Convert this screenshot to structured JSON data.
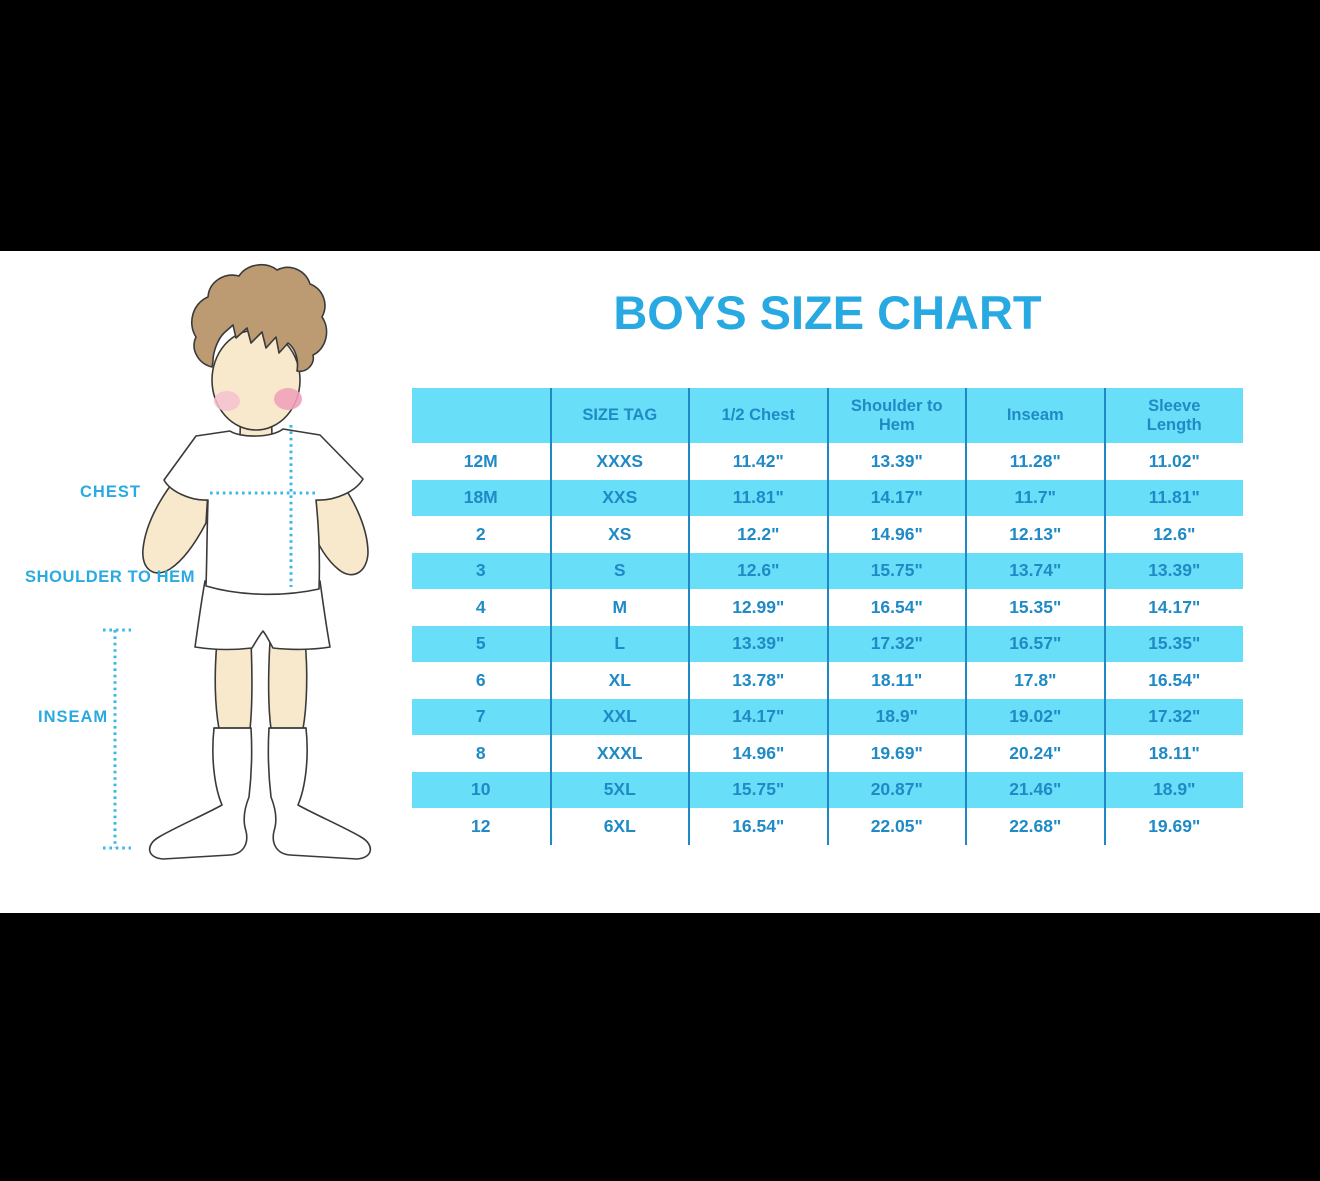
{
  "title": "BOYS SIZE CHART",
  "figure": {
    "labels": {
      "chest": "CHEST",
      "shoulder_to_hem": "SHOULDER TO HEM",
      "inseam": "INSEAM"
    }
  },
  "colors": {
    "accent_blue": "#29a9e1",
    "table_text_blue": "#1f8ac6",
    "cyan_band": "#69def8",
    "column_line_blue": "#2089c5",
    "dotted_line_blue": "#3cb8e8",
    "letterbox_black": "#000000",
    "skin": "#f9e9cc",
    "hair_brown": "#bc9b73",
    "cheek_pink": "#f2aabe"
  },
  "chart_data": {
    "type": "table",
    "title": "BOYS SIZE CHART",
    "columns": [
      "",
      "SIZE TAG",
      "1/2 Chest",
      "Shoulder to Hem",
      "Inseam",
      "Sleeve Length"
    ],
    "rows": [
      [
        "12M",
        "XXXS",
        "11.42\"",
        "13.39\"",
        "11.28\"",
        "11.02\""
      ],
      [
        "18M",
        "XXS",
        "11.81\"",
        "14.17\"",
        "11.7\"",
        "11.81\""
      ],
      [
        "2",
        "XS",
        "12.2\"",
        "14.96\"",
        "12.13\"",
        "12.6\""
      ],
      [
        "3",
        "S",
        "12.6\"",
        "15.75\"",
        "13.74\"",
        "13.39\""
      ],
      [
        "4",
        "M",
        "12.99\"",
        "16.54\"",
        "15.35\"",
        "14.17\""
      ],
      [
        "5",
        "L",
        "13.39\"",
        "17.32\"",
        "16.57\"",
        "15.35\""
      ],
      [
        "6",
        "XL",
        "13.78\"",
        "18.11\"",
        "17.8\"",
        "16.54\""
      ],
      [
        "7",
        "XXL",
        "14.17\"",
        "18.9\"",
        "19.02\"",
        "17.32\""
      ],
      [
        "8",
        "XXXL",
        "14.96\"",
        "19.69\"",
        "20.24\"",
        "18.11\""
      ],
      [
        "10",
        "5XL",
        "15.75\"",
        "20.87\"",
        "21.46\"",
        "18.9\""
      ],
      [
        "12",
        "6XL",
        "16.54\"",
        "22.05\"",
        "22.68\"",
        "19.69\""
      ]
    ]
  }
}
